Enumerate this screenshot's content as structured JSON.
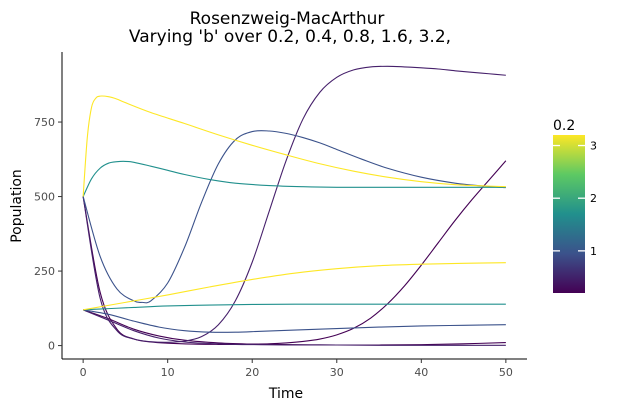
{
  "chart_data": {
    "type": "line",
    "title": "Rosenzweig-MacArthur",
    "subtitle": "Varying 'b' over 0.2, 0.4, 0.8, 1.6, 3.2,",
    "xlabel": "Time",
    "ylabel": "Population",
    "xlim": [
      -2.5,
      52.5
    ],
    "ylim": [
      -45,
      985
    ],
    "x_ticks": [
      0,
      10,
      20,
      30,
      40,
      50
    ],
    "y_ticks": [
      0,
      250,
      500,
      750
    ],
    "grid": false,
    "legend": {
      "title": "0.2",
      "position": "right",
      "type": "colorbar",
      "range": [
        0.2,
        3.2
      ],
      "ticks": [
        1,
        2,
        3
      ],
      "colors": [
        "#440154",
        "#3b528b",
        "#21908d",
        "#5dc963",
        "#fde725"
      ]
    },
    "series": [
      {
        "b": 0.2,
        "color": "#440154",
        "role": "prey",
        "x": [
          0,
          2,
          4,
          6,
          8,
          10,
          13,
          16,
          18,
          20,
          22,
          24,
          26,
          28,
          30,
          32,
          34,
          36,
          38,
          40,
          42,
          44,
          46,
          48,
          50
        ],
        "y": [
          500,
          180,
          55,
          22,
          12,
          8,
          5,
          4,
          4,
          5,
          6,
          9,
          14,
          22,
          36,
          58,
          92,
          140,
          200,
          270,
          345,
          420,
          490,
          555,
          620
        ]
      },
      {
        "b": 0.2,
        "color": "#440154",
        "role": "predator",
        "x": [
          0,
          3,
          6,
          9,
          12,
          16,
          20,
          25,
          30,
          35,
          40,
          45,
          50
        ],
        "y": [
          120,
          90,
          55,
          32,
          18,
          9,
          5,
          3,
          2,
          2,
          3,
          6,
          10
        ]
      },
      {
        "b": 0.4,
        "color": "#46206b",
        "role": "prey",
        "x": [
          0,
          2,
          4,
          6,
          8,
          10,
          12,
          14,
          16,
          18,
          20,
          22,
          24,
          26,
          28,
          30,
          32,
          34,
          36,
          38,
          40,
          42,
          44,
          46,
          48,
          50
        ],
        "y": [
          500,
          160,
          50,
          22,
          13,
          11,
          15,
          30,
          70,
          150,
          280,
          450,
          620,
          760,
          850,
          900,
          925,
          935,
          937,
          935,
          932,
          928,
          922,
          917,
          912,
          907
        ]
      },
      {
        "b": 0.4,
        "color": "#46206b",
        "role": "predator",
        "x": [
          0,
          3,
          6,
          9,
          12,
          15,
          18,
          21,
          24,
          27,
          30,
          35,
          40,
          45,
          50
        ],
        "y": [
          120,
          85,
          50,
          25,
          12,
          7,
          4,
          3,
          2,
          2,
          2,
          1,
          1,
          1,
          1
        ]
      },
      {
        "b": 0.8,
        "color": "#3b528b",
        "role": "prey",
        "x": [
          0,
          2,
          4,
          6,
          7,
          8,
          10,
          12,
          14,
          16,
          18,
          20,
          22,
          24,
          26,
          28,
          30,
          33,
          36,
          40,
          44,
          47,
          50
        ],
        "y": [
          500,
          300,
          190,
          150,
          145,
          150,
          210,
          330,
          480,
          610,
          690,
          718,
          720,
          712,
          698,
          680,
          658,
          625,
          595,
          565,
          545,
          536,
          530
        ]
      },
      {
        "b": 0.8,
        "color": "#3b528b",
        "role": "predator",
        "x": [
          0,
          3,
          6,
          9,
          12,
          15,
          18,
          21,
          25,
          30,
          35,
          40,
          45,
          50
        ],
        "y": [
          120,
          105,
          82,
          62,
          50,
          45,
          45,
          48,
          52,
          57,
          62,
          66,
          68,
          70
        ]
      },
      {
        "b": 1.6,
        "color": "#21908d",
        "role": "prey",
        "x": [
          0,
          1,
          2,
          3,
          4,
          5,
          6,
          8,
          10,
          12,
          15,
          18,
          22,
          26,
          30,
          35,
          40,
          45,
          50
        ],
        "y": [
          500,
          560,
          595,
          612,
          617,
          618,
          615,
          602,
          588,
          574,
          557,
          545,
          537,
          533,
          531,
          531,
          531,
          531,
          531
        ]
      },
      {
        "b": 1.6,
        "color": "#21908d",
        "role": "predator",
        "x": [
          0,
          3,
          6,
          10,
          15,
          20,
          25,
          30,
          35,
          40,
          45,
          50
        ],
        "y": [
          120,
          124,
          128,
          133,
          136,
          138,
          139,
          139,
          139,
          139,
          139,
          139
        ]
      },
      {
        "b": 3.2,
        "color": "#fde725",
        "role": "prey",
        "x": [
          0,
          0.5,
          1,
          1.5,
          2,
          3,
          4,
          5,
          8,
          12,
          16,
          20,
          24,
          28,
          32,
          36,
          40,
          44,
          48,
          50
        ],
        "y": [
          500,
          700,
          800,
          830,
          837,
          835,
          827,
          815,
          782,
          745,
          707,
          672,
          640,
          610,
          585,
          565,
          550,
          540,
          535,
          533
        ]
      },
      {
        "b": 3.2,
        "color": "#fde725",
        "role": "predator",
        "x": [
          0,
          5,
          10,
          15,
          20,
          25,
          30,
          35,
          40,
          45,
          50
        ],
        "y": [
          120,
          145,
          170,
          197,
          222,
          243,
          258,
          268,
          273,
          276,
          278
        ]
      }
    ]
  }
}
